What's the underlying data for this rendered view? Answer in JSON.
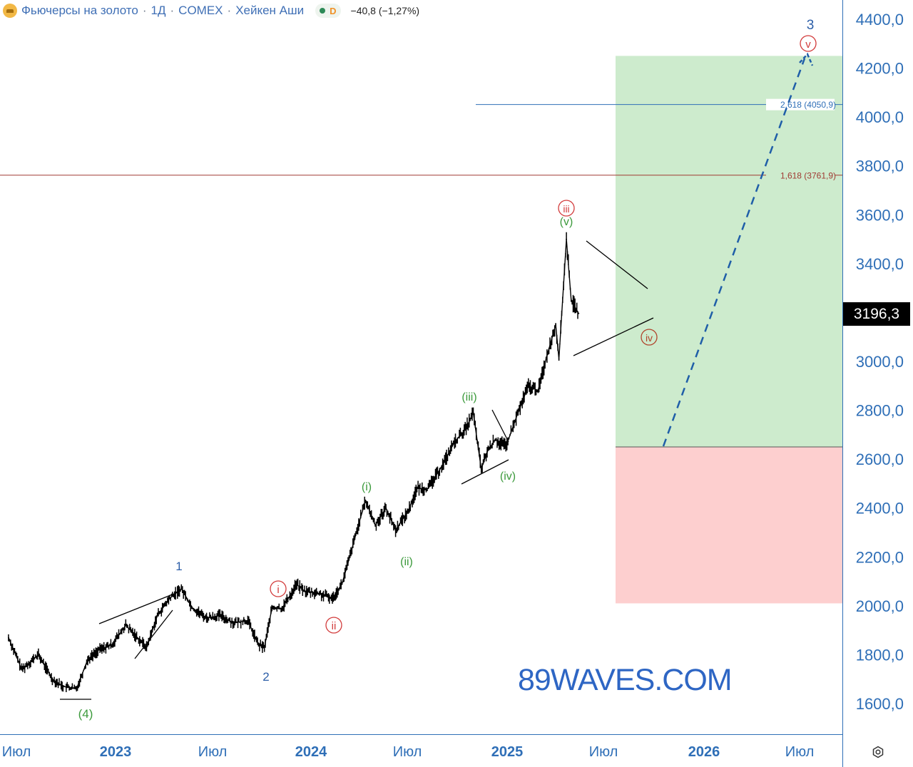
{
  "header": {
    "symbol_name": "Фьючерсы на золото",
    "timeframe": "1Д",
    "exchange": "COMEX",
    "chart_style": "Хейкен Аши",
    "badge_letter": "D",
    "change": "−40,8 (−1,27%)"
  },
  "price_axis": {
    "labels": [
      "4400,0",
      "4200,0",
      "4000,0",
      "3800,0",
      "3600,0",
      "3400,0",
      "3000,0",
      "2800,0",
      "2600,0",
      "2400,0",
      "2200,0",
      "2000,0",
      "1800,0",
      "1600,0"
    ],
    "current_price": "3196,3"
  },
  "time_axis": {
    "labels": [
      "Июл",
      "2023",
      "Июл",
      "2024",
      "Июл",
      "2025",
      "Июл",
      "2026",
      "Июл"
    ]
  },
  "fib_levels": [
    {
      "label": "2,618 (4050,9)",
      "value": 4050.9,
      "color": "#2f6fb7"
    },
    {
      "label": "1,618 (3761,9)",
      "value": 3761.9,
      "color": "#a03a33"
    }
  ],
  "zones": {
    "target_zone": {
      "from": 2650,
      "to": 4250,
      "color": "#cdebcd"
    },
    "stop_zone": {
      "from": 2010,
      "to": 2650,
      "color": "#fdcfcf"
    }
  },
  "wave_labels": {
    "primary": [
      "1",
      "2",
      "3"
    ],
    "circled_minor": [
      "i",
      "ii",
      "iii",
      "iv",
      "v"
    ],
    "minute": [
      "(i)",
      "(ii)",
      "(iii)",
      "(iv)",
      "(v)",
      "(4)"
    ]
  },
  "watermark": "89WAVES.COM",
  "icons": {
    "settings": "gear-icon",
    "logo": "gold-bar-icon"
  },
  "chart_data": {
    "type": "line",
    "title": "",
    "xlabel": "",
    "ylabel": "",
    "ylim": [
      1480,
      4460
    ],
    "x_range": [
      "2022-06-15",
      "2026-08-20"
    ],
    "grid": false,
    "series": [
      {
        "name": "",
        "x": [
          "2022-06-15",
          "2022-07-10",
          "2022-08-10",
          "2022-09-05",
          "2022-09-25",
          "2022-10-20",
          "2022-11-10",
          "2022-12-01",
          "2022-12-25",
          "2023-01-20",
          "2023-02-15",
          "2023-02-28",
          "2023-03-20",
          "2023-04-12",
          "2023-05-04",
          "2023-05-25",
          "2023-06-20",
          "2023-07-15",
          "2023-08-10",
          "2023-09-05",
          "2023-09-25",
          "2023-10-06",
          "2023-10-20",
          "2023-11-08",
          "2023-11-28",
          "2023-12-04",
          "2023-12-20",
          "2024-01-15",
          "2024-02-10",
          "2024-02-28",
          "2024-03-12",
          "2024-04-01",
          "2024-04-12",
          "2024-04-30",
          "2024-05-20",
          "2024-06-07",
          "2024-07-01",
          "2024-07-17",
          "2024-08-07",
          "2024-09-01",
          "2024-09-25",
          "2024-10-15",
          "2024-10-30",
          "2024-11-14",
          "2024-11-25",
          "2024-12-10",
          "2024-12-30",
          "2025-01-20",
          "2025-02-10",
          "2025-02-28",
          "2025-03-15",
          "2025-04-02",
          "2025-04-08",
          "2025-04-22",
          "2025-05-01",
          "2025-05-15"
        ],
        "values": [
          1870,
          1740,
          1800,
          1700,
          1670,
          1660,
          1780,
          1820,
          1840,
          1920,
          1860,
          1830,
          1960,
          2030,
          2070,
          1990,
          1950,
          1960,
          1930,
          1940,
          1840,
          1830,
          1990,
          1990,
          2060,
          2090,
          2060,
          2050,
          2030,
          2090,
          2190,
          2350,
          2430,
          2330,
          2400,
          2310,
          2390,
          2480,
          2480,
          2570,
          2670,
          2720,
          2790,
          2560,
          2630,
          2680,
          2650,
          2780,
          2900,
          2880,
          3010,
          3150,
          3010,
          3500,
          3250,
          3196
        ]
      }
    ]
  }
}
